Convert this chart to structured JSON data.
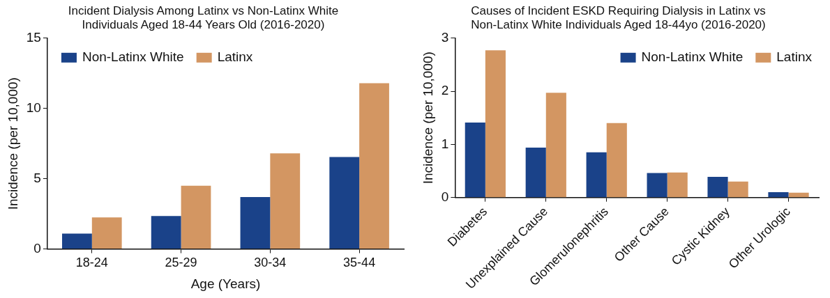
{
  "chart_data": [
    {
      "type": "bar",
      "title": "Incident Dialysis Among Latinx vs Non-Latinx White\nIndividuals Aged 18-44 Years Old (2016-2020)",
      "xlabel": "Age (Years)",
      "ylabel": "Incidence (per 10,000)",
      "categories": [
        "18-24",
        "25-29",
        "30-34",
        "35-44"
      ],
      "series": [
        {
          "name": "Non-Latinx White",
          "color": "#1a4289",
          "values": [
            1.1,
            2.35,
            3.7,
            6.55
          ]
        },
        {
          "name": "Latinx",
          "color": "#d39662",
          "values": [
            2.25,
            4.5,
            6.8,
            11.8
          ]
        }
      ],
      "ylim": [
        0,
        15
      ],
      "yticks": [
        0,
        5,
        10,
        15
      ],
      "grid": false,
      "legend": "top left"
    },
    {
      "type": "bar",
      "title": "Causes of Incident ESKD Requiring Dialysis in Latinx vs\nNon-Latinx White Individuals Aged 18-44yo (2016-2020)",
      "ylabel": "Incidence (per 10,000)",
      "categories": [
        "Diabetes",
        "Unexplained Cause",
        "Glomerulonephritis",
        "Other Cause",
        "Cystic Kidney",
        "Other Urologic"
      ],
      "series": [
        {
          "name": "Non-Latinx White",
          "color": "#1a4289",
          "values": [
            1.41,
            0.94,
            0.85,
            0.46,
            0.39,
            0.1
          ]
        },
        {
          "name": "Latinx",
          "color": "#d39662",
          "values": [
            2.77,
            1.97,
            1.4,
            0.47,
            0.3,
            0.09
          ]
        }
      ],
      "ylim": [
        0,
        3
      ],
      "yticks": [
        0,
        1,
        2,
        3
      ],
      "grid": false,
      "legend": "top right"
    }
  ]
}
